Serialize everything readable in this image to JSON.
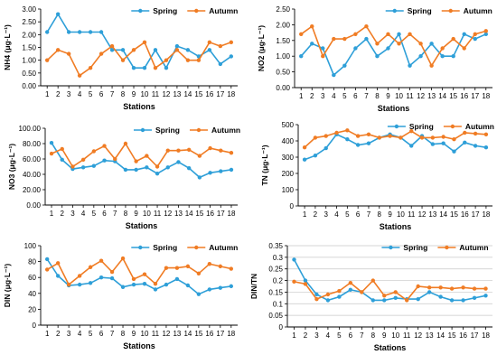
{
  "colors": {
    "spring": "#2E9FD8",
    "autumn": "#F07C24",
    "axis": "#000000",
    "grid": "#c8c8c8"
  },
  "legend": {
    "spring": "Spring",
    "autumn": "Autumn"
  },
  "chart_data": [
    {
      "type": "line",
      "ylabel": "NH4 (μg·L⁻¹)",
      "xlabel": "Stations",
      "x": [
        1,
        2,
        3,
        4,
        5,
        6,
        7,
        8,
        9,
        10,
        11,
        12,
        13,
        14,
        15,
        16,
        17,
        18
      ],
      "ylim": [
        0,
        3
      ],
      "yticks": [
        "0.00",
        "0.50",
        "1.00",
        "1.50",
        "2.00",
        "2.50",
        "3.00"
      ],
      "grid": false,
      "series": [
        {
          "name": "Spring",
          "values": [
            2.1,
            2.8,
            2.1,
            2.1,
            2.1,
            2.1,
            1.4,
            1.4,
            0.7,
            0.7,
            1.4,
            0.7,
            1.55,
            1.4,
            1.15,
            1.4,
            0.85,
            1.15
          ]
        },
        {
          "name": "Autumn",
          "values": [
            1.0,
            1.4,
            1.25,
            0.4,
            0.7,
            1.25,
            1.55,
            1.0,
            1.4,
            1.7,
            0.7,
            1.0,
            1.4,
            1.0,
            1.0,
            1.7,
            1.55,
            1.7
          ]
        }
      ]
    },
    {
      "type": "line",
      "ylabel": "NO2 (μg·L⁻¹)",
      "xlabel": "Stations",
      "x": [
        1,
        2,
        3,
        4,
        5,
        6,
        7,
        8,
        9,
        10,
        11,
        12,
        13,
        14,
        15,
        16,
        17,
        18
      ],
      "ylim": [
        0,
        2.5
      ],
      "yticks": [
        "0.00",
        "0.50",
        "1.00",
        "1.50",
        "2.00",
        "2.50"
      ],
      "grid": false,
      "series": [
        {
          "name": "Spring",
          "values": [
            1.0,
            1.4,
            1.25,
            0.4,
            0.7,
            1.25,
            1.55,
            1.0,
            1.25,
            1.7,
            0.7,
            1.0,
            1.4,
            1.0,
            1.0,
            1.7,
            1.55,
            1.7
          ]
        },
        {
          "name": "Autumn",
          "values": [
            1.7,
            1.95,
            1.0,
            1.55,
            1.55,
            1.7,
            1.95,
            1.4,
            1.7,
            1.4,
            1.7,
            1.4,
            0.7,
            1.25,
            1.55,
            1.25,
            1.7,
            1.8
          ]
        }
      ]
    },
    {
      "type": "line",
      "ylabel": "NO3 (μg·L⁻¹)",
      "xlabel": "Stations",
      "x": [
        1,
        2,
        3,
        4,
        5,
        6,
        7,
        8,
        9,
        10,
        11,
        12,
        13,
        14,
        15,
        16,
        17,
        18
      ],
      "ylim": [
        0,
        100
      ],
      "yticks": [
        "0.00",
        "20.00",
        "40.00",
        "60.00",
        "80.00",
        "100.00"
      ],
      "grid": false,
      "series": [
        {
          "name": "Spring",
          "values": [
            81,
            59,
            47,
            49,
            51,
            58,
            57,
            46,
            46,
            49,
            41,
            49,
            56,
            48,
            36,
            42,
            44,
            46
          ]
        },
        {
          "name": "Autumn",
          "values": [
            67,
            73,
            50,
            59,
            70,
            77,
            60,
            80,
            57,
            64,
            50,
            71,
            71,
            72,
            64,
            74,
            71,
            68
          ]
        }
      ]
    },
    {
      "type": "line",
      "ylabel": "TN (μg·L⁻¹)",
      "xlabel": "Stations",
      "x": [
        1,
        2,
        3,
        4,
        5,
        6,
        7,
        8,
        9,
        10,
        11,
        12,
        13,
        14,
        15,
        16,
        17,
        18
      ],
      "ylim": [
        0,
        500
      ],
      "yticks": [
        "0",
        "100",
        "200",
        "300",
        "400",
        "500"
      ],
      "grid": false,
      "series": [
        {
          "name": "Spring",
          "values": [
            285,
            310,
            355,
            440,
            410,
            375,
            385,
            420,
            440,
            420,
            370,
            430,
            380,
            385,
            335,
            390,
            370,
            360
          ]
        },
        {
          "name": "Autumn",
          "values": [
            360,
            420,
            430,
            450,
            465,
            430,
            440,
            420,
            430,
            420,
            460,
            420,
            420,
            425,
            410,
            450,
            445,
            440
          ]
        }
      ]
    },
    {
      "type": "line",
      "ylabel": "DIN (μg·L⁻¹)",
      "xlabel": "Stations",
      "x": [
        1,
        2,
        3,
        4,
        5,
        6,
        7,
        8,
        9,
        10,
        11,
        12,
        13,
        14,
        15,
        16,
        17,
        18
      ],
      "ylim": [
        0,
        100
      ],
      "yticks": [
        "0",
        "20",
        "40",
        "60",
        "80",
        "100"
      ],
      "grid": false,
      "series": [
        {
          "name": "Spring",
          "values": [
            83,
            62,
            50,
            51,
            53,
            60,
            59,
            48,
            51,
            52,
            45,
            51,
            58,
            50,
            39,
            45,
            47,
            49
          ]
        },
        {
          "name": "Autumn",
          "values": [
            70,
            78,
            51,
            62,
            73,
            81,
            67,
            84,
            58,
            64,
            52,
            72,
            72,
            74,
            65,
            77,
            74,
            71
          ]
        }
      ]
    },
    {
      "type": "line",
      "ylabel": "DIN/TN",
      "xlabel": "Stations",
      "x": [
        1,
        2,
        3,
        4,
        5,
        6,
        7,
        8,
        9,
        10,
        11,
        12,
        13,
        14,
        15,
        16,
        17,
        18
      ],
      "ylim": [
        0,
        0.35
      ],
      "yticks": [
        "0",
        "0.05",
        "0.1",
        "0.15",
        "0.2",
        "0.25",
        "0.3",
        "0.35"
      ],
      "grid": true,
      "series": [
        {
          "name": "Spring",
          "values": [
            0.29,
            0.2,
            0.14,
            0.115,
            0.13,
            0.16,
            0.15,
            0.115,
            0.115,
            0.125,
            0.12,
            0.12,
            0.15,
            0.13,
            0.115,
            0.115,
            0.125,
            0.135
          ]
        },
        {
          "name": "Autumn",
          "values": [
            0.195,
            0.185,
            0.12,
            0.14,
            0.155,
            0.19,
            0.15,
            0.2,
            0.135,
            0.15,
            0.115,
            0.175,
            0.17,
            0.17,
            0.165,
            0.17,
            0.165,
            0.165
          ]
        }
      ]
    }
  ]
}
